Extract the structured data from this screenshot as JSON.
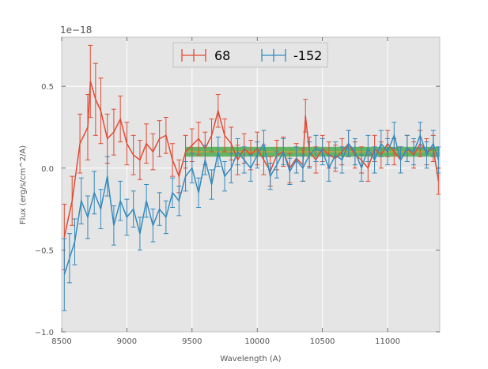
{
  "chart_data": {
    "type": "line",
    "title": "",
    "xlabel": "Wavelength (A)",
    "ylabel": "Flux (erg/s/cm^2/A)",
    "y_offset_label": "1e−18",
    "xlim": [
      8500,
      11400
    ],
    "ylim": [
      -1.0,
      0.8
    ],
    "x_ticks": [
      8500,
      9000,
      9500,
      10000,
      10500,
      11000
    ],
    "x_tick_labels": [
      "8500",
      "9000",
      "9500",
      "10000",
      "10500",
      "11000"
    ],
    "y_ticks": [
      -1.0,
      -0.5,
      0.0,
      0.5
    ],
    "y_tick_labels": [
      "−1.0",
      "−0.5",
      "0.0",
      "0.5"
    ],
    "grid": true,
    "legend_position": "top-center",
    "band": {
      "x_start": 9450,
      "x_end": 11400,
      "y_low": 0.07,
      "y_high": 0.13,
      "color": "#2ca02c"
    },
    "band_centerline": {
      "y": 0.1,
      "color": "#e8a13a"
    },
    "series": [
      {
        "name": "68",
        "color": "#e24a33",
        "x": [
          8520,
          8580,
          8640,
          8700,
          8720,
          8760,
          8800,
          8850,
          8900,
          8950,
          9000,
          9050,
          9100,
          9150,
          9200,
          9250,
          9300,
          9350,
          9400,
          9450,
          9500,
          9550,
          9600,
          9650,
          9700,
          9750,
          9800,
          9850,
          9900,
          9950,
          10000,
          10050,
          10100,
          10150,
          10200,
          10250,
          10300,
          10350,
          10370,
          10400,
          10450,
          10500,
          10550,
          10600,
          10650,
          10700,
          10750,
          10800,
          10850,
          10900,
          10950,
          11000,
          11050,
          11100,
          11150,
          11200,
          11250,
          11300,
          11350,
          11390
        ],
        "y": [
          -0.42,
          -0.2,
          0.15,
          0.25,
          0.53,
          0.42,
          0.35,
          0.18,
          0.22,
          0.3,
          0.15,
          0.08,
          0.05,
          0.15,
          0.1,
          0.18,
          0.2,
          0.05,
          -0.05,
          0.1,
          0.14,
          0.18,
          0.12,
          0.2,
          0.35,
          0.2,
          0.15,
          0.05,
          0.12,
          0.08,
          0.12,
          0.05,
          -0.02,
          0.08,
          0.1,
          0.0,
          0.06,
          0.02,
          0.32,
          0.1,
          0.05,
          0.12,
          0.08,
          0.06,
          0.1,
          0.15,
          0.08,
          0.05,
          0.0,
          0.12,
          0.08,
          0.15,
          0.1,
          0.05,
          0.12,
          0.08,
          0.15,
          0.1,
          0.12,
          -0.08
        ],
        "err": [
          0.2,
          0.15,
          0.18,
          0.2,
          0.22,
          0.22,
          0.2,
          0.15,
          0.14,
          0.14,
          0.13,
          0.12,
          0.12,
          0.12,
          0.11,
          0.11,
          0.11,
          0.1,
          0.1,
          0.1,
          0.1,
          0.1,
          0.1,
          0.1,
          0.1,
          0.1,
          0.1,
          0.09,
          0.09,
          0.09,
          0.1,
          0.09,
          0.09,
          0.09,
          0.09,
          0.09,
          0.09,
          0.1,
          0.1,
          0.09,
          0.08,
          0.08,
          0.08,
          0.08,
          0.08,
          0.08,
          0.08,
          0.08,
          0.08,
          0.08,
          0.08,
          0.08,
          0.08,
          0.08,
          0.08,
          0.08,
          0.08,
          0.08,
          0.08,
          0.08
        ]
      },
      {
        "name": "-152",
        "color": "#348abd",
        "x": [
          8520,
          8560,
          8600,
          8650,
          8700,
          8750,
          8800,
          8850,
          8900,
          8950,
          9000,
          9050,
          9100,
          9150,
          9200,
          9250,
          9300,
          9350,
          9400,
          9450,
          9500,
          9550,
          9600,
          9650,
          9700,
          9750,
          9800,
          9850,
          9900,
          9950,
          10000,
          10050,
          10100,
          10150,
          10200,
          10250,
          10300,
          10350,
          10400,
          10450,
          10500,
          10550,
          10600,
          10650,
          10700,
          10750,
          10800,
          10850,
          10900,
          10950,
          11000,
          11050,
          11100,
          11150,
          11200,
          11250,
          11300,
          11350,
          11390
        ],
        "y": [
          -0.65,
          -0.55,
          -0.45,
          -0.2,
          -0.3,
          -0.15,
          -0.25,
          -0.05,
          -0.35,
          -0.2,
          -0.3,
          -0.25,
          -0.4,
          -0.2,
          -0.35,
          -0.25,
          -0.3,
          -0.15,
          -0.2,
          -0.05,
          0.0,
          -0.15,
          0.05,
          -0.1,
          0.1,
          -0.05,
          0.0,
          0.1,
          0.05,
          0.0,
          0.08,
          0.15,
          -0.05,
          0.02,
          0.1,
          -0.02,
          0.05,
          0.0,
          0.08,
          0.12,
          0.1,
          0.0,
          0.08,
          0.05,
          0.15,
          0.1,
          0.0,
          0.12,
          0.05,
          0.15,
          0.1,
          0.2,
          0.05,
          0.12,
          0.1,
          0.2,
          0.08,
          0.15,
          0.05
        ],
        "err": [
          0.22,
          0.15,
          0.14,
          0.14,
          0.13,
          0.13,
          0.12,
          0.12,
          0.12,
          0.12,
          0.11,
          0.11,
          0.1,
          0.1,
          0.1,
          0.1,
          0.1,
          0.09,
          0.09,
          0.09,
          0.09,
          0.09,
          0.09,
          0.09,
          0.09,
          0.09,
          0.09,
          0.08,
          0.08,
          0.08,
          0.08,
          0.08,
          0.08,
          0.08,
          0.08,
          0.08,
          0.08,
          0.08,
          0.08,
          0.08,
          0.08,
          0.08,
          0.08,
          0.08,
          0.08,
          0.08,
          0.08,
          0.08,
          0.08,
          0.08,
          0.08,
          0.08,
          0.08,
          0.08,
          0.08,
          0.08,
          0.08,
          0.08,
          0.08
        ]
      }
    ]
  }
}
